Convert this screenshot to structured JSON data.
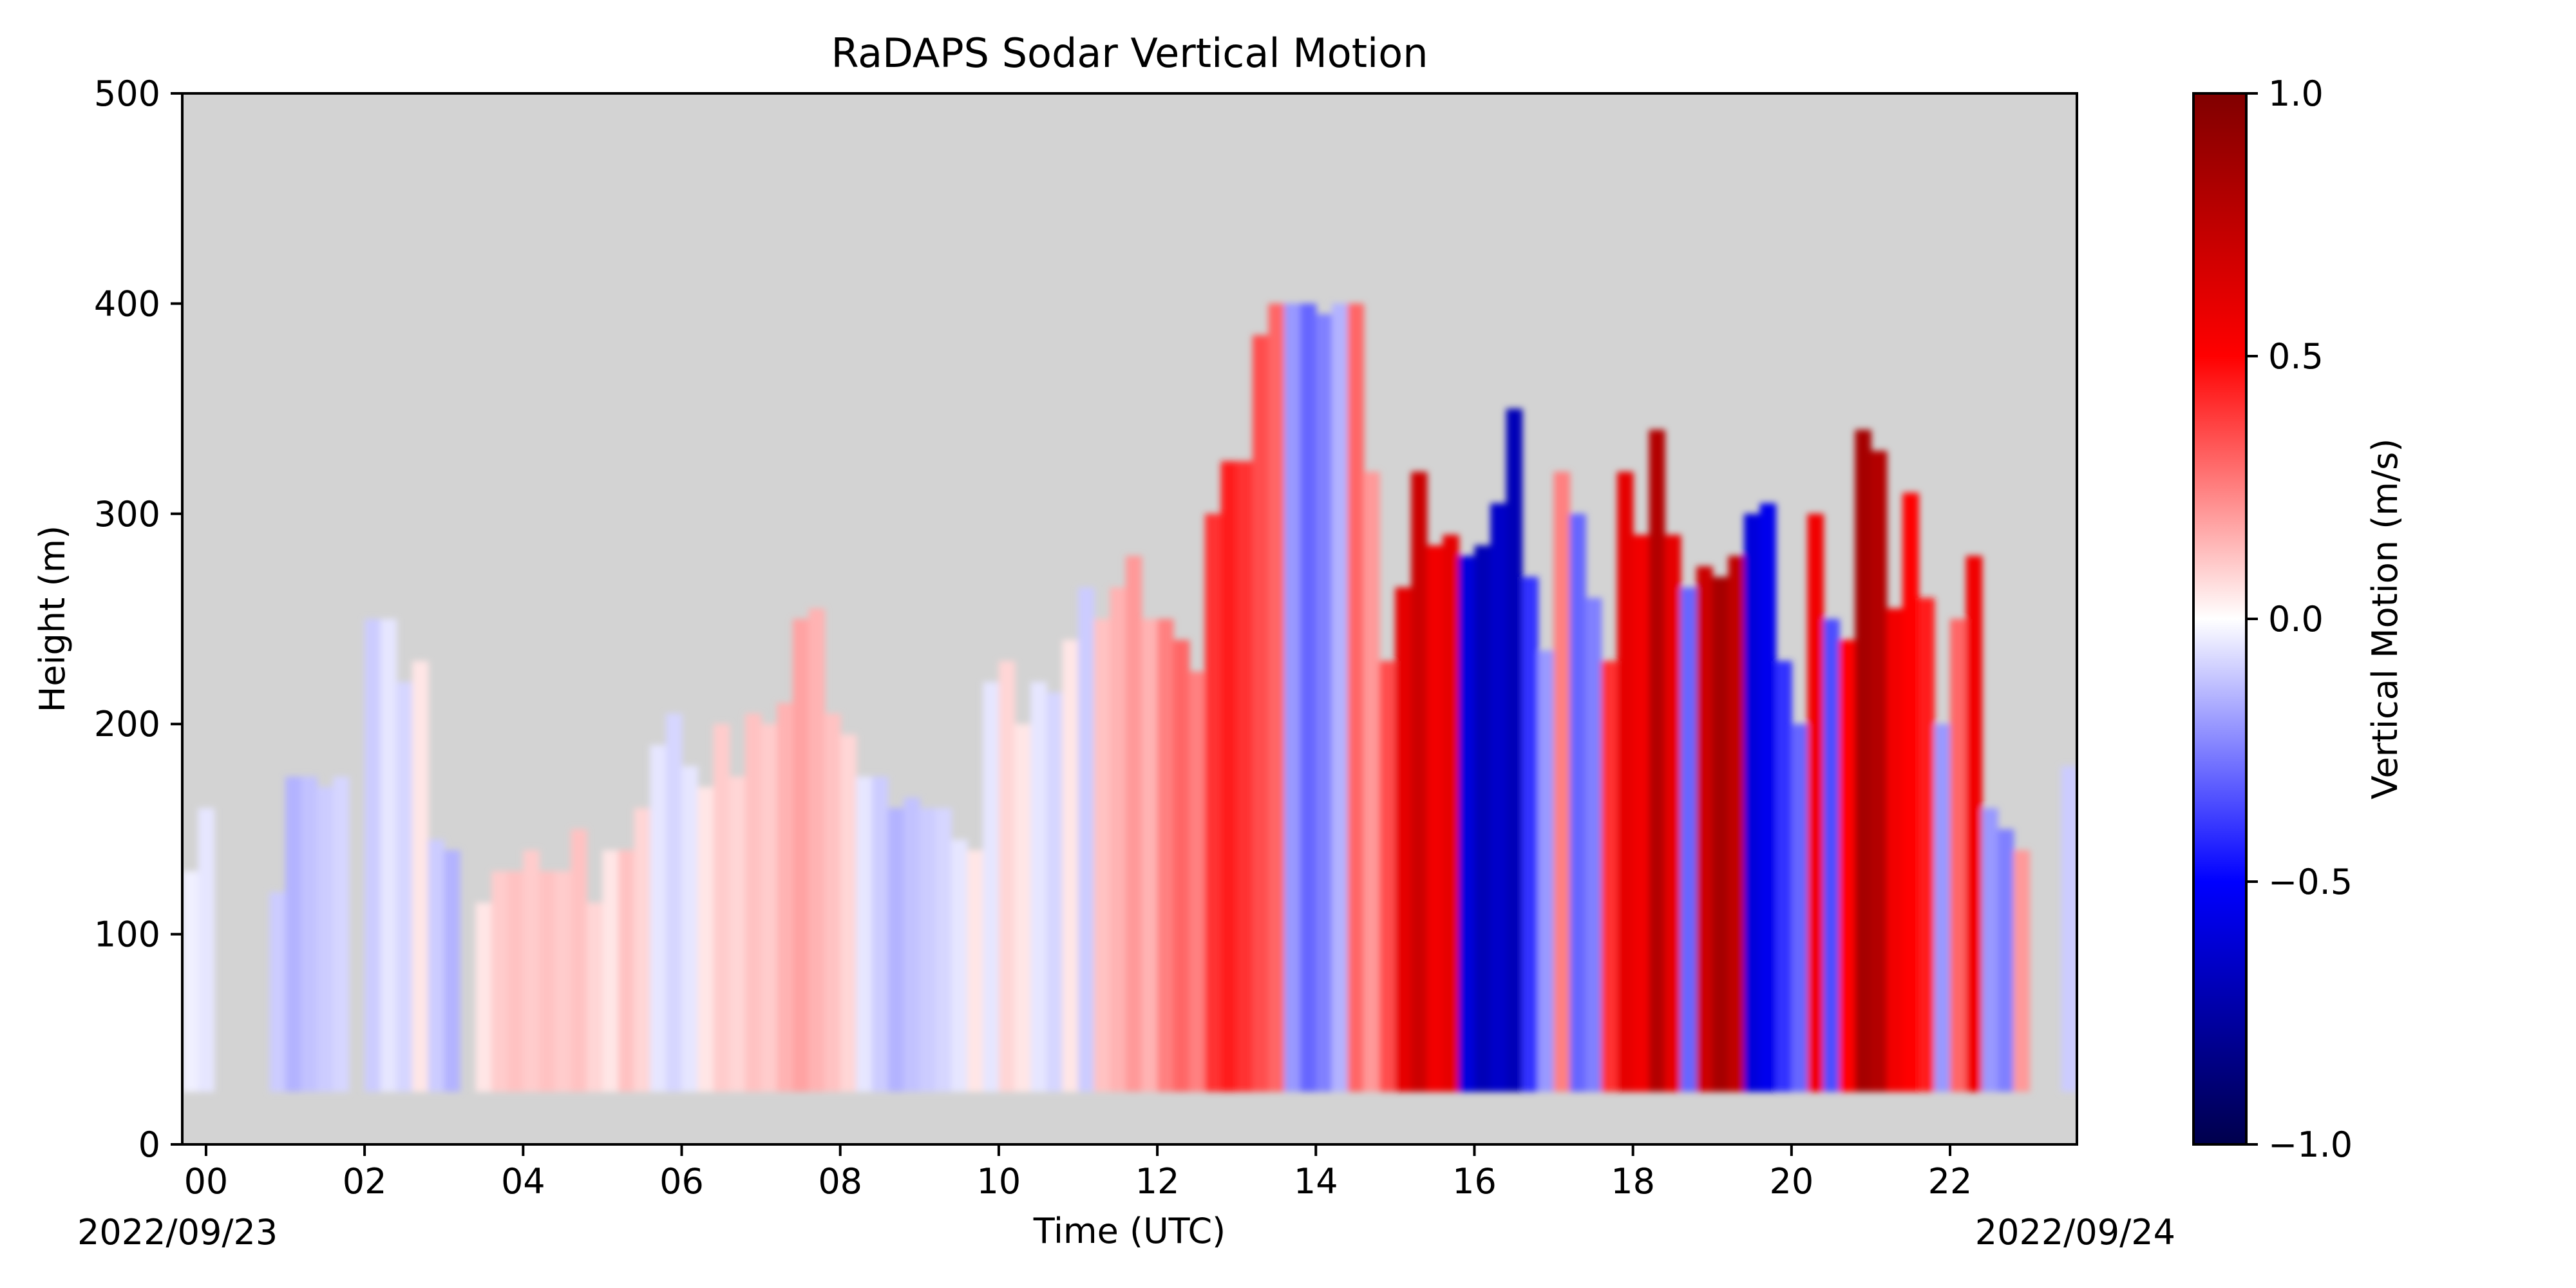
{
  "chart_data": {
    "type": "heatmap",
    "title": "RaDAPS Sodar Vertical Motion",
    "xlabel": "Time (UTC)",
    "ylabel": "Height (m)",
    "date_start_label": "2022/09/23",
    "date_end_label": "2022/09/24",
    "xlim_hours": [
      -0.3,
      23.6
    ],
    "ylim": [
      0,
      500
    ],
    "x_ticks": [
      {
        "value": 0,
        "label": "00"
      },
      {
        "value": 2,
        "label": "02"
      },
      {
        "value": 4,
        "label": "04"
      },
      {
        "value": 6,
        "label": "06"
      },
      {
        "value": 8,
        "label": "08"
      },
      {
        "value": 10,
        "label": "10"
      },
      {
        "value": 12,
        "label": "12"
      },
      {
        "value": 14,
        "label": "14"
      },
      {
        "value": 16,
        "label": "16"
      },
      {
        "value": 18,
        "label": "18"
      },
      {
        "value": 20,
        "label": "20"
      },
      {
        "value": 22,
        "label": "22"
      }
    ],
    "y_ticks": [
      {
        "value": 0,
        "label": "0"
      },
      {
        "value": 100,
        "label": "100"
      },
      {
        "value": 200,
        "label": "200"
      },
      {
        "value": 300,
        "label": "300"
      },
      {
        "value": 400,
        "label": "400"
      },
      {
        "value": 500,
        "label": "500"
      }
    ],
    "colorbar": {
      "label": "Vertical Motion (m/s)",
      "colormap": "seismic",
      "range": [
        -1.0,
        1.0
      ],
      "ticks": [
        {
          "value": 1.0,
          "label": "1.0"
        },
        {
          "value": 0.5,
          "label": "0.5"
        },
        {
          "value": 0.0,
          "label": "0.0"
        },
        {
          "value": -0.5,
          "label": "−0.5"
        },
        {
          "value": -1.0,
          "label": "−1.0"
        }
      ]
    },
    "background_color": "#d3d3d3",
    "min_height_m": 25,
    "columns": [
      {
        "t": -0.2,
        "top": 130,
        "w": -0.03
      },
      {
        "t": 0.0,
        "top": 160,
        "w": -0.05
      },
      {
        "t": 0.9,
        "top": 120,
        "w": -0.1
      },
      {
        "t": 1.1,
        "top": 175,
        "w": -0.15
      },
      {
        "t": 1.3,
        "top": 175,
        "w": -0.12
      },
      {
        "t": 1.5,
        "top": 170,
        "w": -0.1
      },
      {
        "t": 1.7,
        "top": 175,
        "w": -0.08
      },
      {
        "t": 2.1,
        "top": 250,
        "w": -0.1
      },
      {
        "t": 2.3,
        "top": 250,
        "w": -0.05
      },
      {
        "t": 2.5,
        "top": 220,
        "w": -0.08
      },
      {
        "t": 2.7,
        "top": 230,
        "w": 0.05
      },
      {
        "t": 2.9,
        "top": 145,
        "w": -0.1
      },
      {
        "t": 3.1,
        "top": 140,
        "w": -0.15
      },
      {
        "t": 3.5,
        "top": 115,
        "w": 0.05
      },
      {
        "t": 3.7,
        "top": 130,
        "w": 0.1
      },
      {
        "t": 3.9,
        "top": 130,
        "w": 0.12
      },
      {
        "t": 4.1,
        "top": 140,
        "w": 0.1
      },
      {
        "t": 4.3,
        "top": 130,
        "w": 0.12
      },
      {
        "t": 4.5,
        "top": 130,
        "w": 0.1
      },
      {
        "t": 4.7,
        "top": 150,
        "w": 0.12
      },
      {
        "t": 4.9,
        "top": 115,
        "w": 0.08
      },
      {
        "t": 5.1,
        "top": 140,
        "w": 0.05
      },
      {
        "t": 5.3,
        "top": 140,
        "w": 0.12
      },
      {
        "t": 5.5,
        "top": 160,
        "w": 0.08
      },
      {
        "t": 5.7,
        "top": 190,
        "w": -0.05
      },
      {
        "t": 5.9,
        "top": 205,
        "w": -0.08
      },
      {
        "t": 6.1,
        "top": 180,
        "w": -0.05
      },
      {
        "t": 6.3,
        "top": 170,
        "w": 0.05
      },
      {
        "t": 6.5,
        "top": 200,
        "w": 0.1
      },
      {
        "t": 6.7,
        "top": 175,
        "w": 0.08
      },
      {
        "t": 6.9,
        "top": 205,
        "w": 0.12
      },
      {
        "t": 7.1,
        "top": 200,
        "w": 0.1
      },
      {
        "t": 7.3,
        "top": 210,
        "w": 0.15
      },
      {
        "t": 7.5,
        "top": 250,
        "w": 0.18
      },
      {
        "t": 7.7,
        "top": 255,
        "w": 0.15
      },
      {
        "t": 7.9,
        "top": 205,
        "w": 0.12
      },
      {
        "t": 8.1,
        "top": 195,
        "w": 0.08
      },
      {
        "t": 8.3,
        "top": 175,
        "w": -0.05
      },
      {
        "t": 8.5,
        "top": 175,
        "w": -0.1
      },
      {
        "t": 8.7,
        "top": 160,
        "w": -0.15
      },
      {
        "t": 8.9,
        "top": 165,
        "w": -0.12
      },
      {
        "t": 9.1,
        "top": 160,
        "w": -0.1
      },
      {
        "t": 9.3,
        "top": 160,
        "w": -0.08
      },
      {
        "t": 9.5,
        "top": 145,
        "w": -0.05
      },
      {
        "t": 9.7,
        "top": 140,
        "w": 0.05
      },
      {
        "t": 9.9,
        "top": 220,
        "w": -0.05
      },
      {
        "t": 10.1,
        "top": 230,
        "w": 0.08
      },
      {
        "t": 10.3,
        "top": 200,
        "w": 0.05
      },
      {
        "t": 10.5,
        "top": 220,
        "w": -0.05
      },
      {
        "t": 10.7,
        "top": 215,
        "w": -0.08
      },
      {
        "t": 10.9,
        "top": 240,
        "w": 0.05
      },
      {
        "t": 11.1,
        "top": 265,
        "w": -0.1
      },
      {
        "t": 11.3,
        "top": 250,
        "w": 0.12
      },
      {
        "t": 11.5,
        "top": 265,
        "w": 0.15
      },
      {
        "t": 11.7,
        "top": 280,
        "w": 0.2
      },
      {
        "t": 11.9,
        "top": 250,
        "w": 0.15
      },
      {
        "t": 12.1,
        "top": 250,
        "w": 0.25
      },
      {
        "t": 12.3,
        "top": 240,
        "w": 0.3
      },
      {
        "t": 12.5,
        "top": 225,
        "w": 0.25
      },
      {
        "t": 12.7,
        "top": 300,
        "w": 0.4
      },
      {
        "t": 12.9,
        "top": 325,
        "w": 0.45
      },
      {
        "t": 13.1,
        "top": 325,
        "w": 0.4
      },
      {
        "t": 13.3,
        "top": 385,
        "w": 0.35
      },
      {
        "t": 13.5,
        "top": 400,
        "w": 0.3
      },
      {
        "t": 13.7,
        "top": 400,
        "w": -0.2
      },
      {
        "t": 13.9,
        "top": 400,
        "w": -0.3
      },
      {
        "t": 14.1,
        "top": 395,
        "w": -0.25
      },
      {
        "t": 14.3,
        "top": 400,
        "w": -0.15
      },
      {
        "t": 14.5,
        "top": 400,
        "w": 0.3
      },
      {
        "t": 14.7,
        "top": 320,
        "w": 0.2
      },
      {
        "t": 14.9,
        "top": 230,
        "w": 0.35
      },
      {
        "t": 15.1,
        "top": 265,
        "w": 0.6
      },
      {
        "t": 15.3,
        "top": 320,
        "w": 0.7
      },
      {
        "t": 15.5,
        "top": 285,
        "w": 0.55
      },
      {
        "t": 15.7,
        "top": 290,
        "w": 0.6
      },
      {
        "t": 15.9,
        "top": 280,
        "w": -0.6
      },
      {
        "t": 16.1,
        "top": 285,
        "w": -0.7
      },
      {
        "t": 16.3,
        "top": 305,
        "w": -0.65
      },
      {
        "t": 16.5,
        "top": 350,
        "w": -0.7
      },
      {
        "t": 16.7,
        "top": 270,
        "w": -0.4
      },
      {
        "t": 16.9,
        "top": 235,
        "w": -0.2
      },
      {
        "t": 17.1,
        "top": 320,
        "w": 0.25
      },
      {
        "t": 17.3,
        "top": 300,
        "w": -0.3
      },
      {
        "t": 17.5,
        "top": 260,
        "w": -0.25
      },
      {
        "t": 17.7,
        "top": 230,
        "w": 0.4
      },
      {
        "t": 17.9,
        "top": 320,
        "w": 0.6
      },
      {
        "t": 18.1,
        "top": 290,
        "w": 0.55
      },
      {
        "t": 18.3,
        "top": 340,
        "w": 0.8
      },
      {
        "t": 18.5,
        "top": 290,
        "w": 0.6
      },
      {
        "t": 18.7,
        "top": 265,
        "w": -0.3
      },
      {
        "t": 18.9,
        "top": 275,
        "w": 0.7
      },
      {
        "t": 19.1,
        "top": 270,
        "w": 0.85
      },
      {
        "t": 19.3,
        "top": 280,
        "w": 0.75
      },
      {
        "t": 19.5,
        "top": 300,
        "w": -0.6
      },
      {
        "t": 19.7,
        "top": 305,
        "w": -0.55
      },
      {
        "t": 19.9,
        "top": 230,
        "w": -0.4
      },
      {
        "t": 20.1,
        "top": 200,
        "w": -0.3
      },
      {
        "t": 20.3,
        "top": 300,
        "w": 0.55
      },
      {
        "t": 20.5,
        "top": 250,
        "w": -0.35
      },
      {
        "t": 20.7,
        "top": 240,
        "w": 0.5
      },
      {
        "t": 20.9,
        "top": 340,
        "w": 0.85
      },
      {
        "t": 21.1,
        "top": 330,
        "w": 0.8
      },
      {
        "t": 21.3,
        "top": 255,
        "w": 0.55
      },
      {
        "t": 21.5,
        "top": 310,
        "w": 0.5
      },
      {
        "t": 21.7,
        "top": 260,
        "w": 0.45
      },
      {
        "t": 21.9,
        "top": 200,
        "w": -0.2
      },
      {
        "t": 22.1,
        "top": 250,
        "w": 0.3
      },
      {
        "t": 22.3,
        "top": 280,
        "w": 0.55
      },
      {
        "t": 22.5,
        "top": 160,
        "w": -0.2
      },
      {
        "t": 22.7,
        "top": 150,
        "w": -0.25
      },
      {
        "t": 22.9,
        "top": 140,
        "w": 0.2
      },
      {
        "t": 23.5,
        "top": 180,
        "w": -0.1
      }
    ]
  }
}
